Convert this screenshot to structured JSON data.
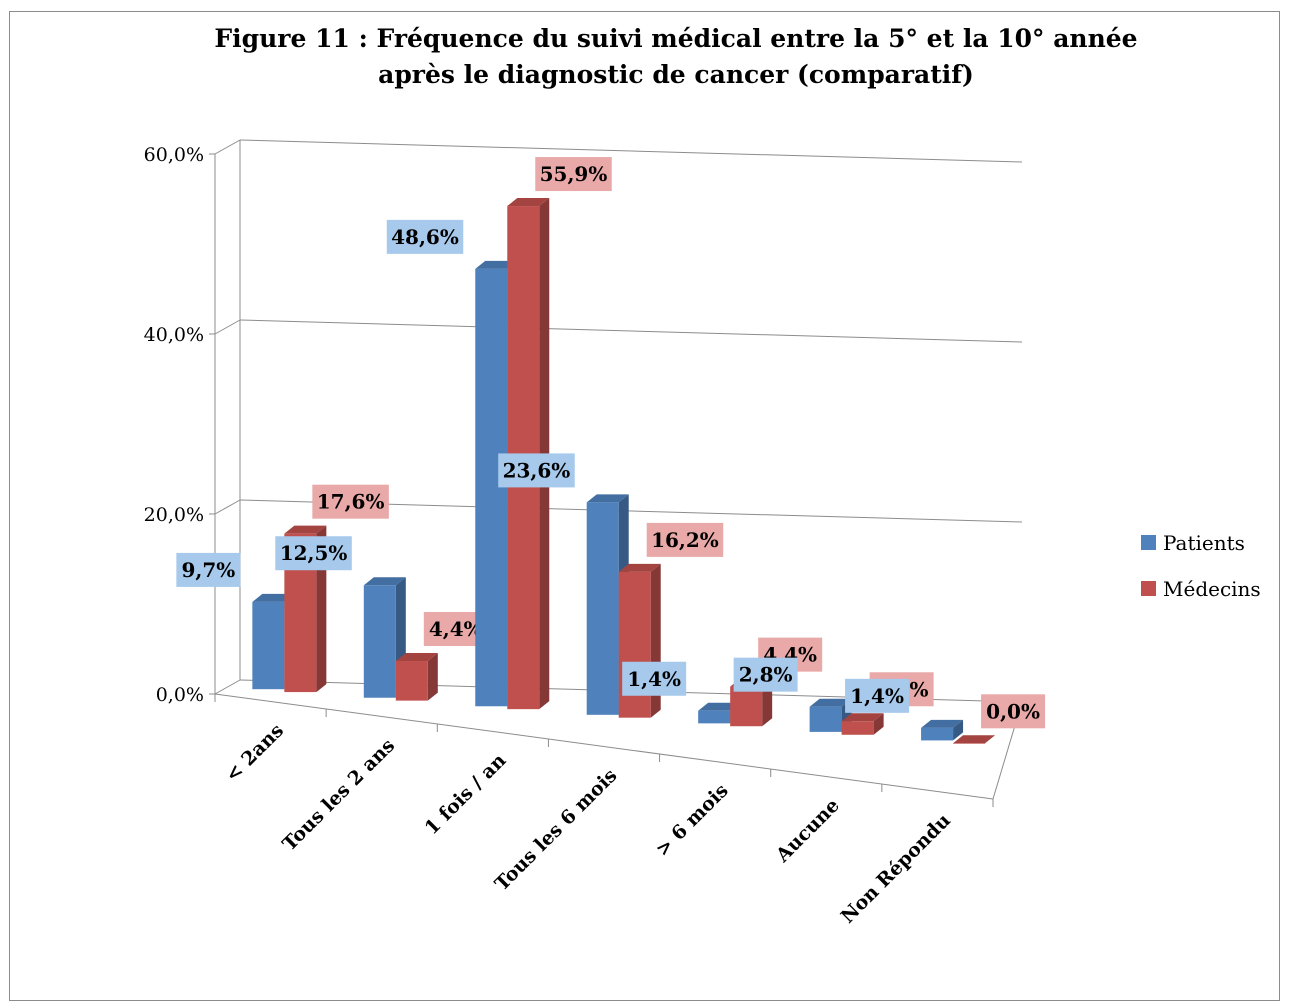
{
  "chart_data": {
    "type": "bar",
    "title_lines": [
      "Figure 11 : Fréquence du suivi médical entre la 5° et la 10° année",
      "après le diagnostic de cancer (comparatif)"
    ],
    "categories": [
      "< 2ans",
      "Tous les 2 ans",
      "1 fois / an",
      "Tous les 6 mois",
      "> 6 mois",
      "Aucune",
      "Non Répondu"
    ],
    "series": [
      {
        "name": "Patients",
        "values": [
          9.7,
          12.5,
          48.6,
          23.6,
          1.4,
          2.8,
          1.4
        ],
        "labels": [
          "9,7%",
          "12,5%",
          "48,6%",
          "23,6%",
          "1,4%",
          "2,8%",
          "1,4%"
        ],
        "color": "#4f81bd",
        "label_bg": "#a6c9ec"
      },
      {
        "name": "Médecins",
        "values": [
          17.6,
          4.4,
          55.9,
          16.2,
          4.4,
          1.5,
          0.0
        ],
        "labels": [
          "17,6%",
          "4,4%",
          "55,9%",
          "16,2%",
          "4,4%",
          "1,5%",
          "0,0%"
        ],
        "color": "#c0504d",
        "label_bg": "#e8a9a8"
      }
    ],
    "yticks": [
      "0,0%",
      "20,0%",
      "40,0%",
      "60,0%"
    ],
    "ylim": [
      0,
      60
    ],
    "grid": true,
    "legend_position": "right",
    "style": "3d-clustered-column"
  }
}
